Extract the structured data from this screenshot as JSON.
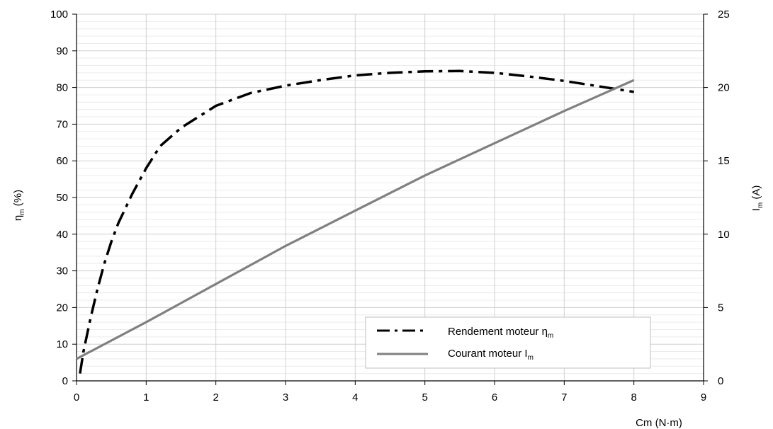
{
  "chart_data": {
    "type": "line",
    "title": "",
    "xlabel": "Cm (N·m)",
    "ylabel_left": {
      "main": "η",
      "sub": "m",
      "suffix": " (%)"
    },
    "ylabel_right": {
      "main": "I",
      "sub": "m",
      "suffix": " (A)"
    },
    "xlim": [
      0,
      9
    ],
    "ylim_left": [
      0,
      100
    ],
    "ylim_right": [
      0,
      25
    ],
    "x_ticks": [
      0,
      1,
      2,
      3,
      4,
      5,
      6,
      7,
      8,
      9
    ],
    "y_left_ticks": [
      0,
      10,
      20,
      30,
      40,
      50,
      60,
      70,
      80,
      90,
      100
    ],
    "y_right_ticks": [
      0,
      5,
      10,
      15,
      20,
      25
    ],
    "grid": true,
    "legend_position": "bottom-right",
    "series": [
      {
        "name": {
          "main": "Rendement moteur η",
          "sub": "m"
        },
        "axis": "left",
        "style": "dash-dot",
        "color": "#000000",
        "x": [
          0.05,
          0.1,
          0.2,
          0.3,
          0.4,
          0.5,
          0.6,
          0.8,
          1.0,
          1.2,
          1.5,
          2.0,
          2.5,
          3.0,
          3.5,
          4.0,
          4.5,
          5.0,
          5.5,
          6.0,
          6.5,
          7.0,
          7.5,
          8.0
        ],
        "values": [
          2,
          8,
          17,
          25,
          32,
          38,
          43,
          51,
          58,
          64,
          69,
          75,
          78.5,
          80.5,
          82,
          83.3,
          84,
          84.4,
          84.5,
          84,
          83,
          81.8,
          80.3,
          78.8
        ]
      },
      {
        "name": {
          "main": "Courant moteur I",
          "sub": "m"
        },
        "axis": "right",
        "style": "solid",
        "color": "#808080",
        "x": [
          0,
          1,
          2,
          3,
          4,
          5,
          6,
          7,
          8
        ],
        "values": [
          1.5,
          4.0,
          6.6,
          9.2,
          11.6,
          14.0,
          16.2,
          18.4,
          20.5
        ]
      }
    ]
  }
}
